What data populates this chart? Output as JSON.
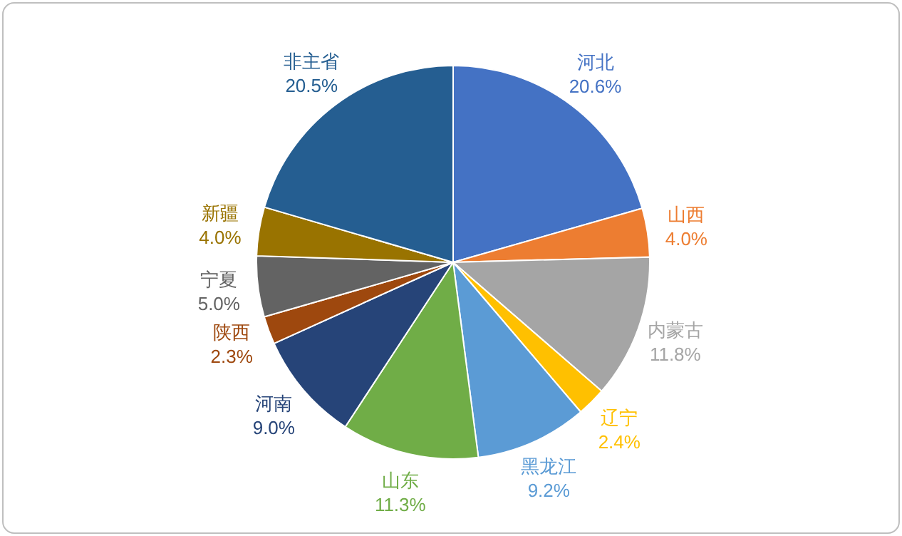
{
  "chart_data": {
    "type": "pie",
    "categories": [
      "河北",
      "山西",
      "内蒙古",
      "辽宁",
      "黑龙江",
      "山东",
      "河南",
      "陕西",
      "宁夏",
      "新疆",
      "非主省"
    ],
    "values": [
      20.6,
      4.0,
      11.8,
      2.4,
      9.2,
      11.3,
      9.0,
      2.3,
      5.0,
      4.0,
      20.5
    ],
    "value_labels": [
      "20.6%",
      "4.0%",
      "11.8%",
      "2.4%",
      "9.2%",
      "11.3%",
      "9.0%",
      "2.3%",
      "5.0%",
      "4.0%",
      "20.5%"
    ],
    "colors": [
      "#4472c4",
      "#ed7d31",
      "#a5a5a5",
      "#ffc000",
      "#5b9bd5",
      "#70ad47",
      "#264478",
      "#9e480e",
      "#636363",
      "#997300",
      "#255e91"
    ]
  }
}
